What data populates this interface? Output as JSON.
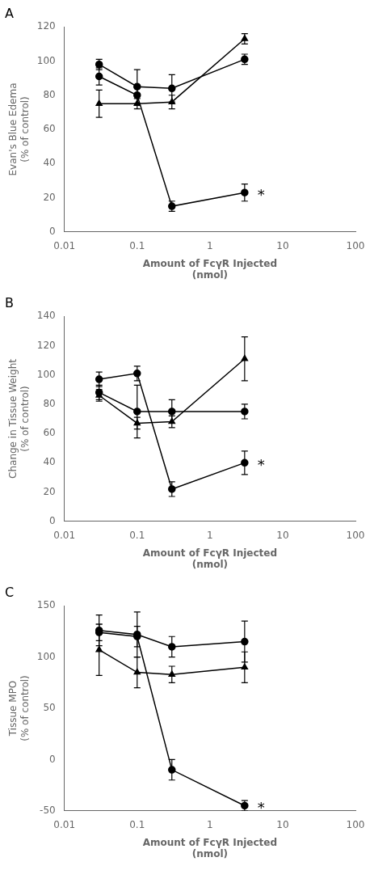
{
  "chart_data": [
    {
      "type": "line",
      "title": "A",
      "xlabel": "Amount of FcγR Injected\n(nmol)",
      "ylabel": "Evan's Blue Edema\n(% of control)",
      "log": "x",
      "grid": false,
      "xlim": [
        0.01,
        100
      ],
      "xticks": [
        0.01,
        0.1,
        1,
        10,
        100
      ],
      "ylim": [
        0,
        120
      ],
      "yticks": [
        0,
        20,
        40,
        60,
        80,
        100,
        120
      ],
      "x": [
        0.03,
        0.1,
        0.3,
        3.0
      ],
      "series": [
        {
          "values": [
            91,
            80,
            15,
            23
          ],
          "yerr": [
            5,
            5,
            3,
            5
          ],
          "marker": "circle",
          "color": "black"
        },
        {
          "values": [
            98,
            85,
            84,
            101
          ],
          "yerr": [
            3,
            10,
            8,
            3
          ],
          "marker": "square",
          "color": "black"
        },
        {
          "values": [
            75,
            75,
            76,
            113
          ],
          "yerr": [
            8,
            3,
            4,
            3
          ],
          "marker": "triangle",
          "color": "black"
        }
      ],
      "annotations": [
        {
          "text": "*",
          "x": 4.5,
          "y": 23
        }
      ]
    },
    {
      "type": "line",
      "title": "B",
      "xlabel": "Amount of FcγR Injected\n(nmol)",
      "ylabel": "Change in Tissue Weight\n(% of control)",
      "log": "x",
      "grid": false,
      "xlim": [
        0.01,
        100
      ],
      "xticks": [
        0.01,
        0.1,
        1,
        10,
        100
      ],
      "ylim": [
        0,
        140
      ],
      "yticks": [
        0,
        20,
        40,
        60,
        80,
        100,
        120,
        140
      ],
      "x": [
        0.03,
        0.1,
        0.3,
        3.0
      ],
      "series": [
        {
          "values": [
            97,
            101,
            22,
            40
          ],
          "yerr": [
            5,
            5,
            5,
            8
          ],
          "marker": "circle",
          "color": "black"
        },
        {
          "values": [
            88,
            75,
            75,
            75
          ],
          "yerr": [
            5,
            18,
            8,
            5
          ],
          "marker": "square",
          "color": "black"
        },
        {
          "values": [
            86,
            67,
            68,
            111
          ],
          "yerr": [
            4,
            4,
            4,
            15
          ],
          "marker": "triangle",
          "color": "black"
        }
      ],
      "annotations": [
        {
          "text": "*",
          "x": 4.5,
          "y": 40
        }
      ]
    },
    {
      "type": "line",
      "title": "C",
      "xlabel": "Amount of FcγR Injected\n(nmol)",
      "ylabel": "Tissue MPO\n(% of control)",
      "log": "x",
      "grid": false,
      "xlim": [
        0.01,
        100
      ],
      "xticks": [
        0.01,
        0.1,
        1,
        10,
        100
      ],
      "ylim": [
        -50,
        150
      ],
      "yticks": [
        -50,
        0,
        50,
        100,
        150
      ],
      "x": [
        0.03,
        0.1,
        0.3,
        3.0
      ],
      "series": [
        {
          "values": [
            124,
            120,
            -10,
            -45
          ],
          "yerr": [
            8,
            10,
            10,
            5
          ],
          "marker": "circle",
          "color": "black"
        },
        {
          "values": [
            126,
            122,
            110,
            115
          ],
          "yerr": [
            15,
            22,
            10,
            20
          ],
          "marker": "square",
          "color": "black"
        },
        {
          "values": [
            107,
            85,
            83,
            90
          ],
          "yerr": [
            25,
            15,
            8,
            15
          ],
          "marker": "triangle",
          "color": "black"
        }
      ],
      "annotations": [
        {
          "text": "*",
          "x": 4.5,
          "y": -45
        }
      ]
    }
  ]
}
